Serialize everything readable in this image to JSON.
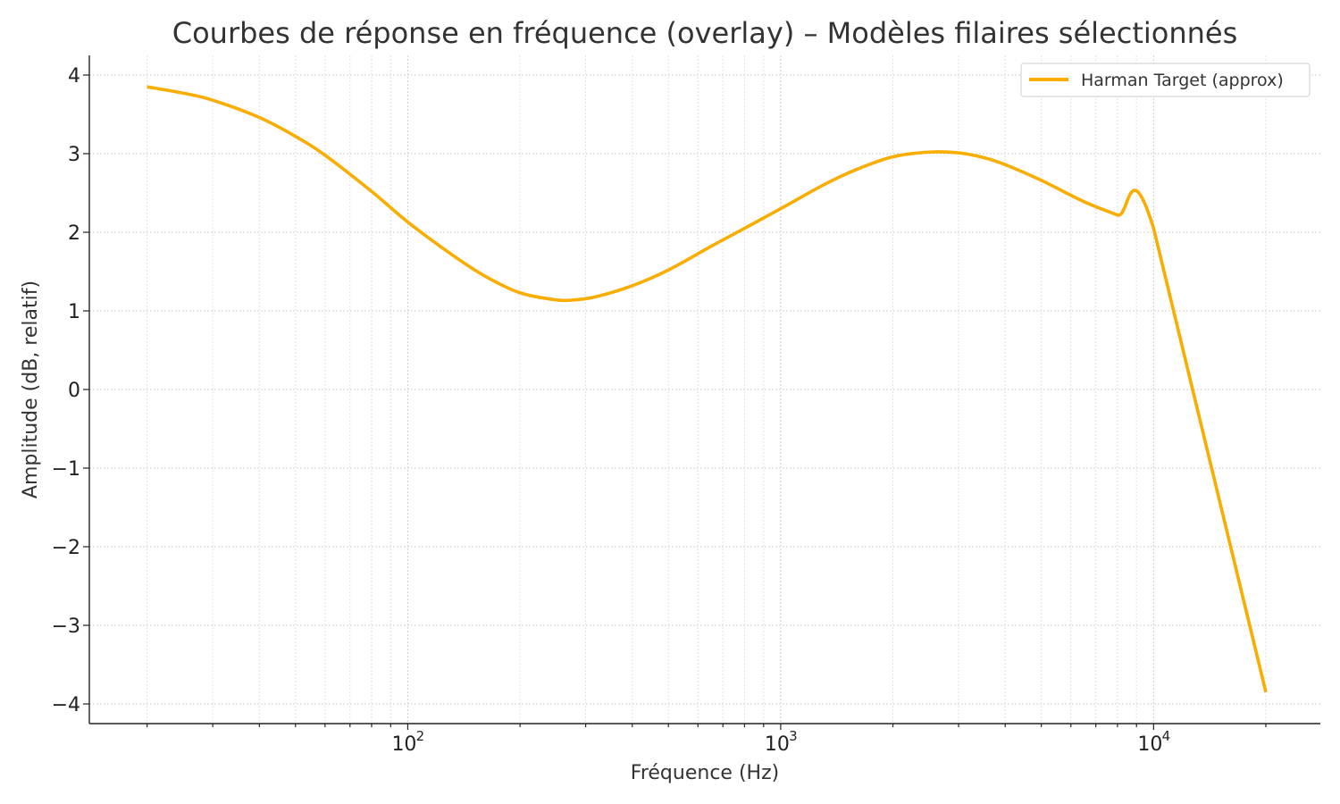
{
  "chart_data": {
    "type": "line",
    "title": "Courbes de réponse en fréquence (overlay) – Modèles filaires sélectionnés",
    "xlabel": "Fréquence (Hz)",
    "ylabel": "Amplitude (dB, relatif)",
    "x_scale": "log",
    "xlim": [
      14,
      28000
    ],
    "ylim": [
      -4.25,
      4.25
    ],
    "x_ticks": [
      100,
      1000,
      10000
    ],
    "x_tick_labels": [
      {
        "base": "10",
        "exp": "2"
      },
      {
        "base": "10",
        "exp": "3"
      },
      {
        "base": "10",
        "exp": "4"
      }
    ],
    "y_ticks": [
      4,
      3,
      2,
      1,
      0,
      -1,
      -2,
      -3,
      -4
    ],
    "y_tick_labels": [
      "4",
      "3",
      "2",
      "1",
      "0",
      "−1",
      "−2",
      "−3",
      "−4"
    ],
    "grid": true,
    "legend_position": "top-right",
    "series": [
      {
        "name": "Harman Target (approx)",
        "color": "#f9ad00",
        "x": [
          20,
          25,
          30,
          40,
          50,
          60,
          80,
          100,
          130,
          160,
          200,
          250,
          280,
          320,
          400,
          500,
          650,
          800,
          1000,
          1300,
          1600,
          2000,
          2500,
          3000,
          3500,
          4000,
          5000,
          6500,
          8000,
          10000,
          20000
        ],
        "y": [
          3.85,
          3.77,
          3.68,
          3.46,
          3.22,
          2.98,
          2.52,
          2.13,
          1.73,
          1.45,
          1.23,
          1.14,
          1.14,
          1.18,
          1.32,
          1.52,
          1.82,
          2.05,
          2.3,
          2.6,
          2.8,
          2.96,
          3.02,
          3.01,
          2.95,
          2.86,
          2.66,
          2.39,
          2.22,
          2.05,
          -3.85
        ]
      }
    ]
  }
}
